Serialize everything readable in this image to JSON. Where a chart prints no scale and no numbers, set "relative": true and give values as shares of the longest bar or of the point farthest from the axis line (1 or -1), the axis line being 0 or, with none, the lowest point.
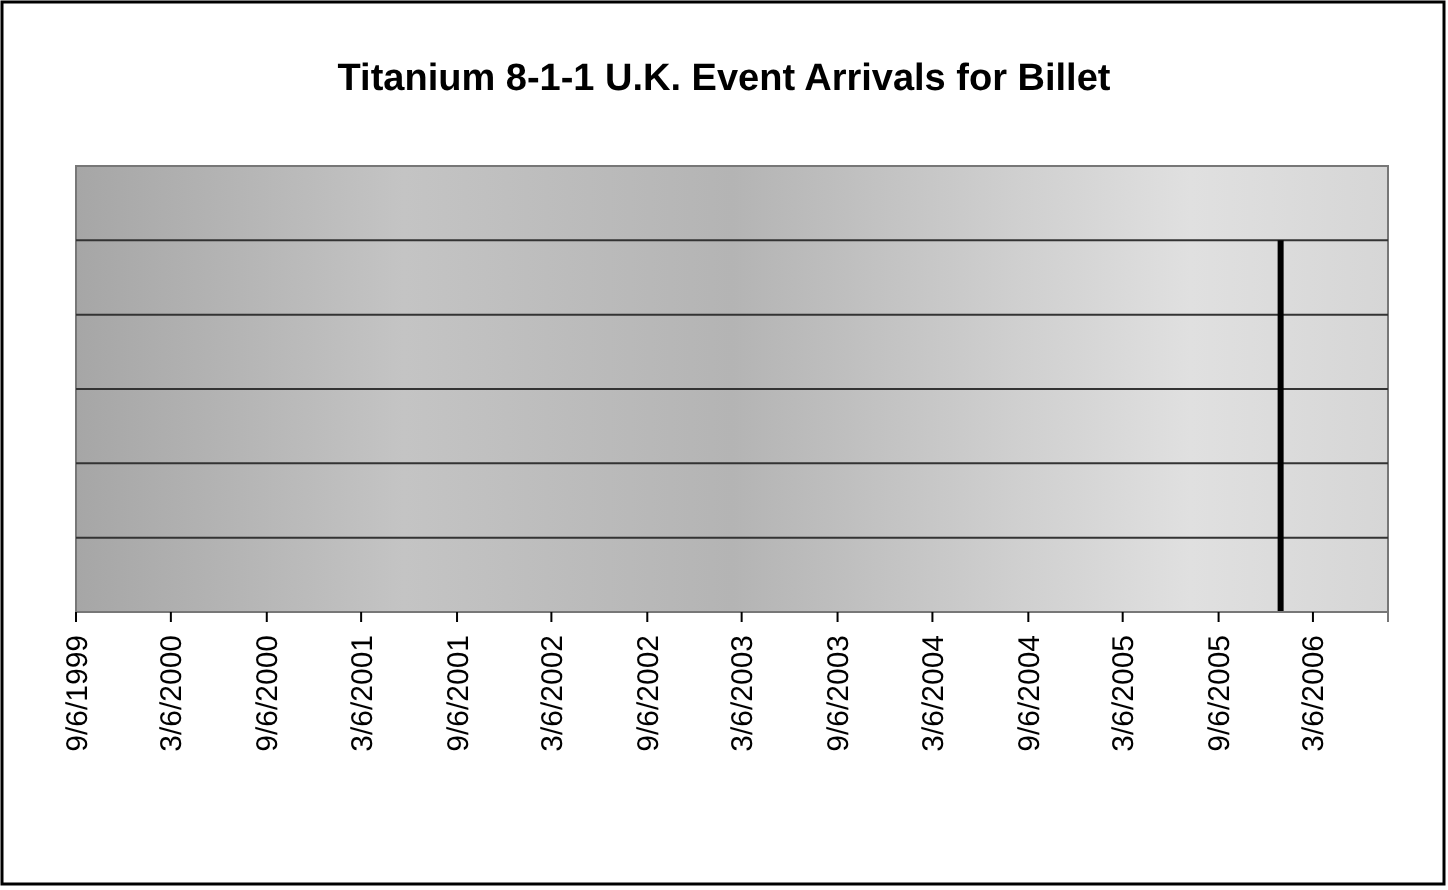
{
  "chart_data": {
    "type": "bar",
    "title": "Titanium 8-1-1 U.K. Event Arrivals for Billet",
    "x": [
      "2006-01-03"
    ],
    "values": [
      1
    ],
    "relative": true,
    "color": "#000000",
    "xlim": [
      "1999-09-06",
      "2006-07-28"
    ],
    "xticks": [
      {
        "value": "1999-09-06",
        "label": "9/6/1999"
      },
      {
        "value": "2000-03-06",
        "label": "3/6/2000"
      },
      {
        "value": "2000-09-06",
        "label": "9/6/2000"
      },
      {
        "value": "2001-03-06",
        "label": "3/6/2001"
      },
      {
        "value": "2001-09-06",
        "label": "9/6/2001"
      },
      {
        "value": "2002-03-06",
        "label": "3/6/2002"
      },
      {
        "value": "2002-09-06",
        "label": "9/6/2002"
      },
      {
        "value": "2003-03-06",
        "label": "3/6/2003"
      },
      {
        "value": "2003-09-06",
        "label": "9/6/2003"
      },
      {
        "value": "2004-03-06",
        "label": "3/6/2004"
      },
      {
        "value": "2004-09-06",
        "label": "9/6/2004"
      },
      {
        "value": "2005-03-06",
        "label": "3/6/2005"
      },
      {
        "value": "2005-09-06",
        "label": "9/6/2005"
      },
      {
        "value": "2006-03-06",
        "label": "3/6/2006"
      }
    ],
    "grid": "y"
  }
}
